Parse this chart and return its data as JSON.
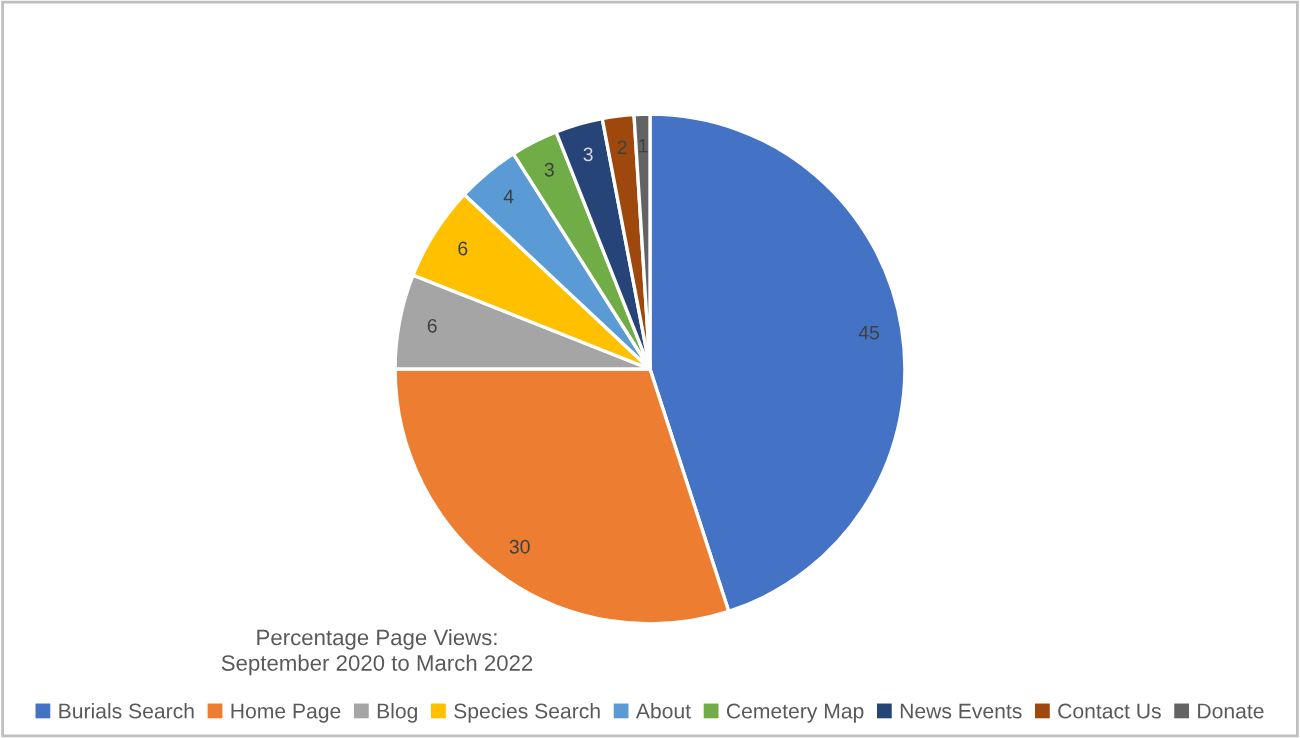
{
  "chart_data": {
    "type": "pie",
    "title": "Percentage Page Views:\nSeptember 2020 to March 2022",
    "categories": [
      "Burials Search",
      "Home Page",
      "Blog",
      "Species Search",
      "About",
      "Cemetery Map",
      "News Events",
      "Contact Us",
      "Donate"
    ],
    "values": [
      45,
      30,
      6,
      6,
      4,
      3,
      3,
      2,
      1
    ],
    "colors": [
      "#4472c4",
      "#ed7d31",
      "#a5a5a5",
      "#ffc000",
      "#5b9bd5",
      "#70ad47",
      "#264478",
      "#9e480e",
      "#636363"
    ],
    "data_labels": true,
    "legend": "bottom"
  }
}
